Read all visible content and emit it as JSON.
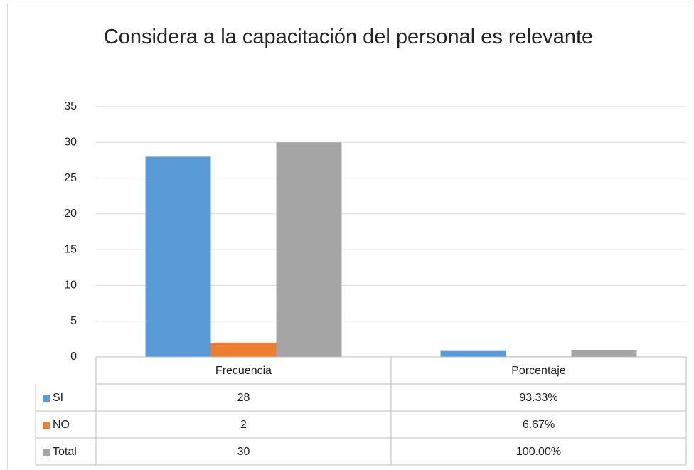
{
  "chart_data": {
    "type": "bar",
    "title": "Considera a la capacitación del personal es relevante",
    "categories": [
      "Frecuencia",
      "Porcentaje"
    ],
    "series": [
      {
        "name": "SI",
        "color": "#5b9bd5",
        "values": [
          28,
          0.9333
        ],
        "value_labels": [
          "28",
          "93.33%"
        ]
      },
      {
        "name": "NO",
        "color": "#ed7d31",
        "values": [
          2,
          0.0667
        ],
        "value_labels": [
          "2",
          "6.67%"
        ]
      },
      {
        "name": "Total",
        "color": "#a5a5a5",
        "values": [
          30,
          1
        ],
        "value_labels": [
          "30",
          "100.00%"
        ]
      }
    ],
    "ylim": [
      0,
      35
    ],
    "yticks": [
      0,
      5,
      10,
      15,
      20,
      25,
      30,
      35
    ],
    "grid": true
  }
}
